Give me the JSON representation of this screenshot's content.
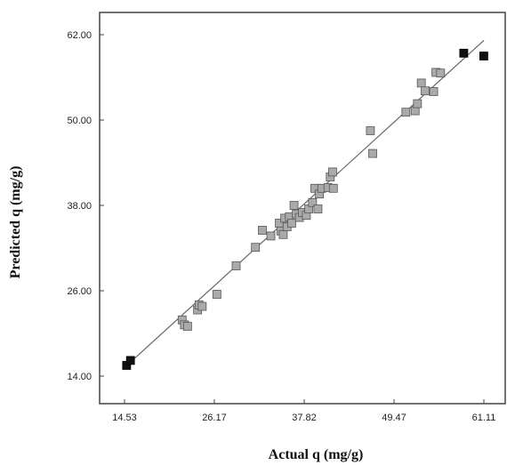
{
  "chart_data": {
    "type": "scatter",
    "xlabel": "Actual q (mg/g)",
    "ylabel": "Predicted q (mg/g)",
    "xlim": [
      14.53,
      61.11
    ],
    "ylim": [
      14.0,
      62.0
    ],
    "x_ticks": [
      14.53,
      26.17,
      37.82,
      49.47,
      61.11
    ],
    "x_tick_labels": [
      "14.53",
      "26.17",
      "37.82",
      "49.47",
      "61.11"
    ],
    "y_ticks": [
      14.0,
      26.0,
      38.0,
      50.0,
      62.0
    ],
    "y_tick_labels": [
      "14.00",
      "26.00",
      "38.00",
      "50.00",
      "62.00"
    ],
    "grid": false,
    "fit_line": {
      "x": [
        14.53,
        61.11
      ],
      "y": [
        15.2,
        61.2
      ]
    },
    "series": [
      {
        "color": "#aaaaaa",
        "points": [
          [
            22.0,
            21.9
          ],
          [
            22.3,
            21.2
          ],
          [
            22.7,
            21.0
          ],
          [
            24.0,
            23.3
          ],
          [
            24.2,
            24.0
          ],
          [
            24.6,
            23.8
          ],
          [
            26.5,
            25.5
          ],
          [
            29.0,
            29.5
          ],
          [
            31.5,
            32.1
          ],
          [
            32.4,
            34.5
          ],
          [
            33.5,
            33.7
          ],
          [
            34.6,
            35.5
          ],
          [
            34.8,
            34.4
          ],
          [
            35.1,
            33.9
          ],
          [
            35.3,
            36.2
          ],
          [
            35.6,
            35.0
          ],
          [
            35.9,
            36.4
          ],
          [
            36.2,
            35.5
          ],
          [
            36.5,
            38.0
          ],
          [
            36.8,
            36.8
          ],
          [
            37.2,
            36.3
          ],
          [
            37.6,
            37.0
          ],
          [
            38.1,
            36.6
          ],
          [
            38.4,
            37.5
          ],
          [
            38.9,
            38.4
          ],
          [
            39.2,
            40.4
          ],
          [
            39.6,
            37.5
          ],
          [
            39.8,
            39.6
          ],
          [
            40.1,
            40.4
          ],
          [
            40.9,
            40.5
          ],
          [
            41.2,
            42.0
          ],
          [
            41.6,
            40.4
          ],
          [
            41.5,
            42.7
          ],
          [
            46.4,
            48.5
          ],
          [
            46.7,
            45.3
          ],
          [
            51.0,
            51.1
          ],
          [
            52.2,
            51.3
          ],
          [
            52.5,
            52.3
          ],
          [
            53.0,
            55.2
          ],
          [
            53.5,
            54.1
          ],
          [
            54.6,
            54.0
          ],
          [
            54.9,
            56.7
          ],
          [
            55.5,
            56.6
          ]
        ]
      },
      {
        "color": "#111111",
        "points": [
          [
            14.8,
            15.5
          ],
          [
            15.3,
            16.2
          ],
          [
            58.5,
            59.4
          ],
          [
            61.1,
            59.0
          ]
        ]
      }
    ]
  }
}
